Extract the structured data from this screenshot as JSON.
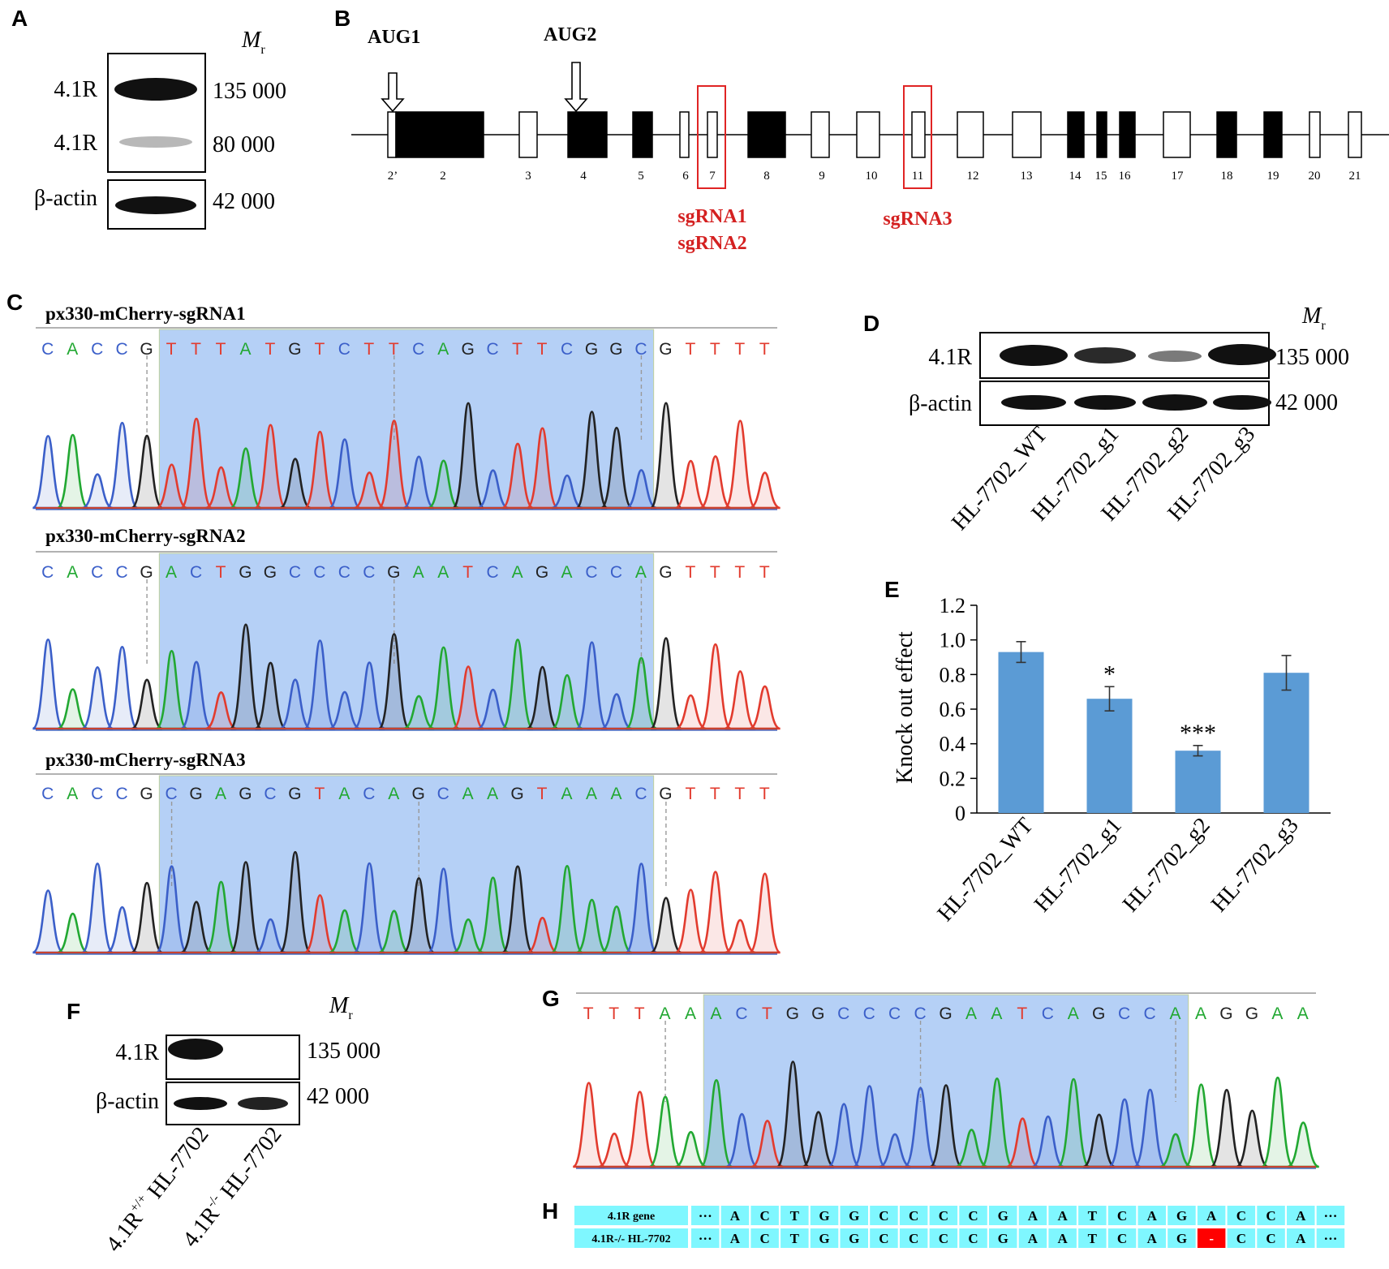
{
  "panel_letters": {
    "A": "A",
    "B": "B",
    "C": "C",
    "D": "D",
    "E": "E",
    "F": "F",
    "G": "G",
    "H": "H"
  },
  "panelA": {
    "mr": "M",
    "mr_sub": "r",
    "rows": [
      {
        "label": "4.1R",
        "weight": "135 000"
      },
      {
        "label": "4.1R",
        "weight": "80 000"
      },
      {
        "label": "β-actin",
        "weight": "42 000"
      }
    ]
  },
  "panelB": {
    "aug1": "AUG1",
    "aug2": "AUG2",
    "exons": [
      "2’",
      "2",
      "3",
      "4",
      "5",
      "6",
      "7",
      "8",
      "9",
      "10",
      "11",
      "12",
      "13",
      "14",
      "15",
      "16",
      "17",
      "18",
      "19",
      "20",
      "21"
    ],
    "sg_a1": "sgRNA1",
    "sg_a2": "sgRNA2",
    "sg_b": "sgRNA3"
  },
  "panelC": {
    "traces": [
      {
        "title": "px330-mCherry-sgRNA1",
        "seq": "CACCGTTTATGTCTTCAGCTTCGGCGTTTT"
      },
      {
        "title": "px330-mCherry-sgRNA2",
        "seq": "CACCGACTGGCCCCGAATCAGACCAGTTTT"
      },
      {
        "title": "px330-mCherry-sgRNA3",
        "seq": "CACCGCGAGCGTACAGCAAGTAAACGTTTT"
      }
    ]
  },
  "panelD": {
    "mr": "M",
    "mr_sub": "r",
    "rows": [
      {
        "label": "4.1R",
        "weight": "135 000"
      },
      {
        "label": "β-actin",
        "weight": "42 000"
      }
    ],
    "lanes": [
      "HL-7702_WT",
      "HL-7702_g1",
      "HL-7702_g2",
      "HL-7702_g3"
    ]
  },
  "chart_data": {
    "type": "bar",
    "categories": [
      "HL-7702_WT",
      "HL-7702_g1",
      "HL-7702_g2",
      "HL-7702_g3"
    ],
    "values": [
      0.93,
      0.66,
      0.36,
      0.81
    ],
    "errors": [
      0.06,
      0.07,
      0.03,
      0.1
    ],
    "significance": [
      "",
      "*",
      "***",
      ""
    ],
    "ylabel": "Knock out effect",
    "ylim": [
      0,
      1.2
    ],
    "yticks": [
      "0",
      "0.2",
      "0.4",
      "0.6",
      "0.8",
      "1.0",
      "1.2"
    ],
    "bar_color": "#5b9bd5",
    "grid": false
  },
  "panelF": {
    "mr": "M",
    "mr_sub": "r",
    "rows": [
      {
        "label": "4.1R",
        "weight": "135 000"
      },
      {
        "label": "β-actin",
        "weight": "42 000"
      }
    ],
    "lane1_main": "4.1R",
    "lane1_sup": "+/+",
    "lane1_rest": " HL-7702",
    "lane2_main": "4.1R",
    "lane2_sup": "-/-",
    "lane2_rest": " HL-7702"
  },
  "panelG": {
    "seq": "TTTAAACTGGCCCCGAATCAGCCAAGGAA"
  },
  "panelH": {
    "row1_label": "4.1R gene",
    "row2_label": "4.1R-/- HL-7702",
    "ellipsis": "···",
    "row1": [
      "A",
      "C",
      "T",
      "G",
      "G",
      "C",
      "C",
      "C",
      "C",
      "G",
      "A",
      "A",
      "T",
      "C",
      "A",
      "G",
      "A",
      "C",
      "C",
      "A"
    ],
    "row2": [
      "A",
      "C",
      "T",
      "G",
      "G",
      "C",
      "C",
      "C",
      "C",
      "G",
      "A",
      "A",
      "T",
      "C",
      "A",
      "G",
      "-",
      "C",
      "C",
      "A"
    ],
    "cell_color": "#7ff7ff",
    "deletion_color": "#ff0000"
  },
  "base_colors": {
    "A": "#22a832",
    "C": "#3b5fc9",
    "G": "#222222",
    "T": "#e23b2e"
  }
}
